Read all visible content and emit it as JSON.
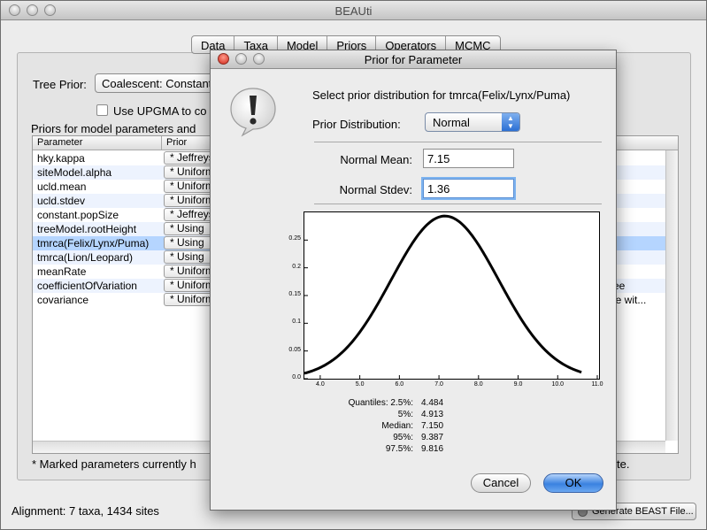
{
  "main_window": {
    "title": "BEAUti",
    "tabs": [
      "Data",
      "Taxa",
      "Model",
      "Priors",
      "Operators",
      "MCMC"
    ],
    "tree_prior_label": "Tree Prior:",
    "tree_prior_value": "Coalescent: Constant",
    "upgma_label": "Use UPGMA to co",
    "priors_heading": "Priors for model parameters and",
    "table": {
      "columns": [
        "Parameter",
        "Prior"
      ],
      "rows": [
        {
          "name": "hky.kappa",
          "prior": "* Jeffreys"
        },
        {
          "name": "siteModel.alpha",
          "prior": "* Uniform"
        },
        {
          "name": "ucld.mean",
          "prior": "* Uniform"
        },
        {
          "name": "ucld.stdev",
          "prior": "* Uniform"
        },
        {
          "name": "constant.popSize",
          "prior": "* Jeffreys"
        },
        {
          "name": "treeModel.rootHeight",
          "prior": "* Using"
        },
        {
          "name": "tmrca(Felix/Lynx/Puma)",
          "prior": "* Using"
        },
        {
          "name": "tmrca(Lion/Leopard)",
          "prior": "* Using"
        },
        {
          "name": "meanRate",
          "prior": "* Uniform"
        },
        {
          "name": "coefficientOfVariation",
          "prior": "* Uniform",
          "desc": "ree"
        },
        {
          "name": "covariance",
          "prior": "* Uniform",
          "desc": "ge wit..."
        }
      ]
    },
    "marked_note": "* Marked parameters currently h",
    "marked_note_tail": "te.",
    "alignment": "Alignment: 7 taxa, 1434 sites",
    "generate_button": "Generate BEAST File..."
  },
  "dialog": {
    "title": "Prior for Parameter",
    "heading": "Select prior distribution for tmrca(Felix/Lynx/Puma)",
    "distribution_label": "Prior Distribution:",
    "distribution_value": "Normal",
    "mean_label": "Normal Mean:",
    "mean_value": "7.15",
    "stdev_label": "Normal Stdev:",
    "stdev_value": "1.36",
    "quantiles": [
      {
        "label": "Quantiles: 2.5%:",
        "value": "4.484"
      },
      {
        "label": "5%:",
        "value": "4.913"
      },
      {
        "label": "Median:",
        "value": "7.150"
      },
      {
        "label": "95%:",
        "value": "9.387"
      },
      {
        "label": "97.5%:",
        "value": "9.816"
      }
    ],
    "cancel_label": "Cancel",
    "ok_label": "OK"
  },
  "chart_data": {
    "type": "line",
    "title": "",
    "xlabel": "",
    "ylabel": "",
    "distribution": "normal",
    "mean": 7.15,
    "stdev": 1.36,
    "xlim": [
      3.6,
      11.0
    ],
    "ylim": [
      0.0,
      0.3
    ],
    "x_ticks": [
      "4.0",
      "5.0",
      "6.0",
      "7.0",
      "8.0",
      "9.0",
      "10.0",
      "11.0"
    ],
    "y_ticks": [
      "0.0",
      "0.05",
      "0.1",
      "0.15",
      "0.2",
      "0.25"
    ],
    "curve_x_range": [
      3.6,
      10.6
    ]
  }
}
